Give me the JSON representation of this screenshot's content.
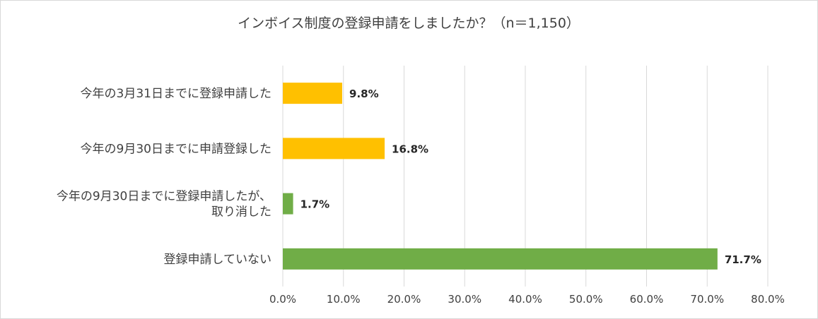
{
  "chart_data": {
    "type": "bar",
    "orientation": "horizontal",
    "title": "インボイス制度の登録申請をしましたか？（n＝1,150）",
    "categories": [
      [
        "今年の3月31日までに登録申請した"
      ],
      [
        "今年の9月30日までに申請登録した"
      ],
      [
        "今年の9月30日までに登録申請したが、",
        "取り消した"
      ],
      [
        "登録申請していない"
      ]
    ],
    "values": [
      9.8,
      16.8,
      1.7,
      71.7
    ],
    "value_labels": [
      "9.8%",
      "16.8%",
      "1.7%",
      "71.7%"
    ],
    "bar_colors": [
      "#ffc000",
      "#ffc000",
      "#70ad47",
      "#70ad47"
    ],
    "xlim": [
      0,
      80
    ],
    "xticks": [
      0,
      10,
      20,
      30,
      40,
      50,
      60,
      70,
      80
    ],
    "xtick_labels": [
      "0.0%",
      "10.0%",
      "20.0%",
      "30.0%",
      "40.0%",
      "50.0%",
      "60.0%",
      "70.0%",
      "80.0%"
    ],
    "grid": true,
    "legend": "none"
  }
}
